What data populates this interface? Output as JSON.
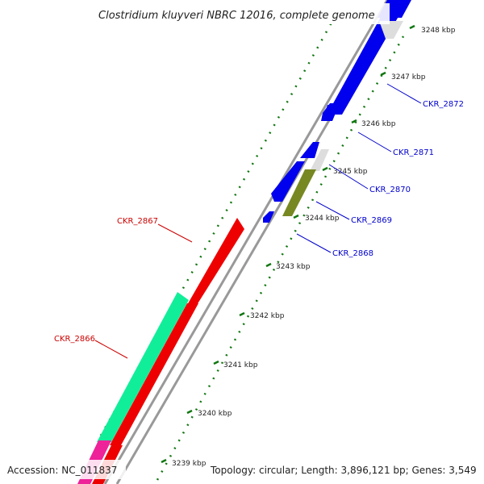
{
  "title": "Clostridium kluyveri NBRC 12016, complete genome",
  "footer": {
    "accession": "Accession: NC_011837",
    "summary": "Topology: circular; Length: 3,896,121 bp; Genes: 3,549"
  },
  "scale": {
    "ticks": [
      {
        "label": "3239 kbp"
      },
      {
        "label": "3240 kbp"
      },
      {
        "label": "3241 kbp"
      },
      {
        "label": "3242 kbp"
      },
      {
        "label": "3243 kbp"
      },
      {
        "label": "3244 kbp"
      },
      {
        "label": "3245 kbp"
      },
      {
        "label": "3246 kbp"
      },
      {
        "label": "3247 kbp"
      },
      {
        "label": "3248 kbp"
      }
    ]
  },
  "colors": {
    "forward_gene": "#0000ee",
    "reverse_gene": "#ee0000",
    "cyan_gene": "#11ee99",
    "olive_gene": "#778822",
    "magenta_gene": "#ee2299",
    "light_gene": "#dddddd",
    "backbone": "#999999",
    "tick_green": "#117711",
    "forward_label": "#0000cc",
    "reverse_label": "#cc0000"
  },
  "gene_labels": {
    "forward": [
      "CKR_2872",
      "CKR_2871",
      "CKR_2870",
      "CKR_2869",
      "CKR_2868"
    ],
    "reverse": [
      "CKR_2867",
      "CKR_2866"
    ]
  }
}
